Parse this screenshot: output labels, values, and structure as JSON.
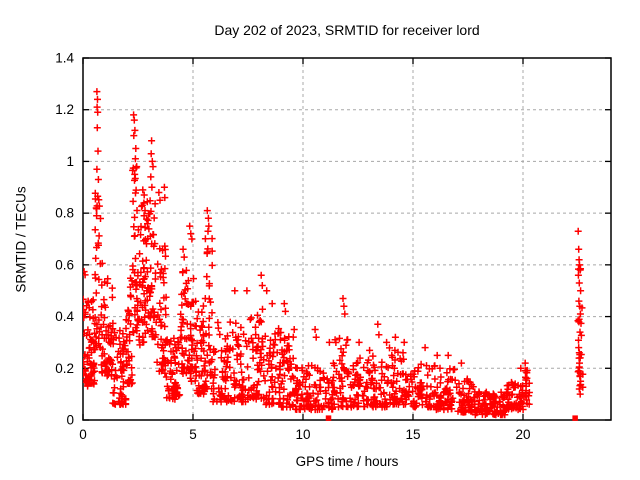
{
  "colors": {
    "marker": "#ff0000",
    "grid": "#a8a8a8",
    "frame": "#000000",
    "background": "#ffffff",
    "text": "#000000"
  },
  "chart_data": {
    "type": "scatter",
    "title": "Day 202 of 2023, SRMTID for receiver lord",
    "xlabel": "GPS time / hours",
    "ylabel": "SRMTID / TECUs",
    "xlim": [
      0,
      24
    ],
    "ylim": [
      0,
      1.4
    ],
    "xticks": [
      0,
      5,
      10,
      15,
      20
    ],
    "xtick_labels": [
      "0",
      "5",
      "10",
      "15",
      "20"
    ],
    "yticks": [
      0,
      0.2,
      0.4,
      0.6,
      0.8,
      1,
      1.2,
      1.4
    ],
    "ytick_labels": [
      "0",
      "0.2",
      "0.4",
      "0.6",
      "0.8",
      "1",
      "1.2",
      "1.4"
    ],
    "grid": true,
    "legend": "none",
    "marker": {
      "shape": "plus",
      "color": "#ff0000",
      "size": 7
    },
    "special_markers": {
      "shape": "filled-square",
      "color": "#ff0000",
      "points": [
        [
          11.16,
          0
        ],
        [
          22.37,
          0
        ]
      ]
    },
    "seed": 20230722,
    "scatter_envelope_bins": [
      [
        0.0,
        0.1,
        12,
        0.15,
        0.65,
        1.0
      ],
      [
        0.05,
        0.55,
        60,
        0.13,
        0.48,
        1.4
      ],
      [
        0.55,
        0.8,
        30,
        0.28,
        0.88,
        1.2
      ],
      [
        0.8,
        1.35,
        55,
        0.17,
        0.62,
        1.6
      ],
      [
        1.35,
        1.95,
        55,
        0.06,
        0.38,
        1.6
      ],
      [
        1.95,
        2.25,
        38,
        0.14,
        0.55,
        1.4
      ],
      [
        2.25,
        2.52,
        40,
        0.33,
        0.98,
        1.2
      ],
      [
        2.52,
        2.88,
        42,
        0.28,
        0.85,
        1.4
      ],
      [
        2.88,
        3.3,
        52,
        0.32,
        0.88,
        1.3
      ],
      [
        3.3,
        3.78,
        48,
        0.18,
        0.7,
        1.5
      ],
      [
        3.78,
        4.4,
        55,
        0.08,
        0.32,
        1.5
      ],
      [
        4.4,
        4.8,
        38,
        0.18,
        0.58,
        1.4
      ],
      [
        4.8,
        5.15,
        35,
        0.15,
        0.62,
        1.4
      ],
      [
        5.15,
        5.55,
        40,
        0.1,
        0.45,
        1.5
      ],
      [
        5.55,
        5.9,
        35,
        0.12,
        0.72,
        1.6
      ],
      [
        5.9,
        6.6,
        52,
        0.07,
        0.42,
        1.7
      ],
      [
        6.6,
        7.4,
        55,
        0.07,
        0.38,
        1.7
      ],
      [
        7.4,
        8.3,
        60,
        0.08,
        0.45,
        1.7
      ],
      [
        8.3,
        9.0,
        55,
        0.06,
        0.38,
        1.7
      ],
      [
        9.0,
        9.6,
        48,
        0.05,
        0.33,
        1.7
      ],
      [
        9.6,
        10.35,
        55,
        0.04,
        0.22,
        1.6
      ],
      [
        10.35,
        10.95,
        32,
        0.04,
        0.22,
        1.7
      ],
      [
        10.95,
        11.35,
        22,
        0.04,
        0.16,
        1.5
      ],
      [
        11.35,
        12.1,
        48,
        0.05,
        0.33,
        1.8
      ],
      [
        12.1,
        13.0,
        55,
        0.05,
        0.25,
        1.7
      ],
      [
        13.0,
        14.0,
        62,
        0.05,
        0.28,
        1.7
      ],
      [
        14.0,
        15.0,
        62,
        0.06,
        0.27,
        1.7
      ],
      [
        15.0,
        16.0,
        60,
        0.05,
        0.22,
        1.7
      ],
      [
        16.0,
        17.0,
        60,
        0.04,
        0.2,
        1.7
      ],
      [
        17.0,
        17.8,
        52,
        0.03,
        0.16,
        1.6
      ],
      [
        17.8,
        19.2,
        85,
        0.02,
        0.11,
        1.5
      ],
      [
        19.2,
        20.05,
        55,
        0.04,
        0.15,
        1.5
      ],
      [
        20.05,
        20.3,
        18,
        0.06,
        0.2,
        1.2
      ],
      [
        22.48,
        22.64,
        10,
        0.1,
        0.6,
        1.0
      ],
      [
        22.52,
        22.75,
        10,
        0.12,
        0.55,
        1.0
      ]
    ],
    "peak_points": [
      [
        0.63,
        1.27
      ],
      [
        0.66,
        1.24
      ],
      [
        0.64,
        1.21
      ],
      [
        0.67,
        1.19
      ],
      [
        0.65,
        1.13
      ],
      [
        0.68,
        1.04
      ],
      [
        0.63,
        0.97
      ],
      [
        0.7,
        0.93
      ],
      [
        0.6,
        0.82
      ],
      [
        0.62,
        0.79
      ],
      [
        2.3,
        1.18
      ],
      [
        2.33,
        1.16
      ],
      [
        2.36,
        1.12
      ],
      [
        2.31,
        1.1
      ],
      [
        2.4,
        1.05
      ],
      [
        2.38,
        1.01
      ],
      [
        2.44,
        0.98
      ],
      [
        2.35,
        0.95
      ],
      [
        2.72,
        0.89
      ],
      [
        2.78,
        0.87
      ],
      [
        2.7,
        0.83
      ],
      [
        2.82,
        0.81
      ],
      [
        3.12,
        1.08
      ],
      [
        3.1,
        1.03
      ],
      [
        3.15,
        1.0
      ],
      [
        3.18,
        0.98
      ],
      [
        3.08,
        0.94
      ],
      [
        3.13,
        0.9
      ],
      [
        3.45,
        0.88
      ],
      [
        3.5,
        0.85
      ],
      [
        3.7,
        0.9
      ],
      [
        3.72,
        0.86
      ],
      [
        4.55,
        0.66
      ],
      [
        4.6,
        0.63
      ],
      [
        4.85,
        0.75
      ],
      [
        4.9,
        0.72
      ],
      [
        4.95,
        0.7
      ],
      [
        5.65,
        0.81
      ],
      [
        5.7,
        0.78
      ],
      [
        5.72,
        0.75
      ],
      [
        5.68,
        0.73
      ],
      [
        6.9,
        0.5
      ],
      [
        7.45,
        0.5
      ],
      [
        8.1,
        0.56
      ],
      [
        8.15,
        0.52
      ],
      [
        8.35,
        0.5
      ],
      [
        8.6,
        0.45
      ],
      [
        9.15,
        0.45
      ],
      [
        9.2,
        0.42
      ],
      [
        9.6,
        0.35
      ],
      [
        10.55,
        0.35
      ],
      [
        10.6,
        0.32
      ],
      [
        11.2,
        0.3
      ],
      [
        11.82,
        0.47
      ],
      [
        11.86,
        0.44
      ],
      [
        11.9,
        0.41
      ],
      [
        12.55,
        0.3
      ],
      [
        13.4,
        0.37
      ],
      [
        13.45,
        0.33
      ],
      [
        13.8,
        0.3
      ],
      [
        14.2,
        0.32
      ],
      [
        14.6,
        0.3
      ],
      [
        15.55,
        0.28
      ],
      [
        16.1,
        0.25
      ],
      [
        16.6,
        0.25
      ],
      [
        17.2,
        0.22
      ],
      [
        19.9,
        0.2
      ],
      [
        20.1,
        0.22
      ],
      [
        20.15,
        0.19
      ],
      [
        22.51,
        0.73
      ],
      [
        22.53,
        0.66
      ],
      [
        22.55,
        0.62
      ],
      [
        22.57,
        0.6
      ],
      [
        22.6,
        0.58
      ],
      [
        22.52,
        0.56
      ],
      [
        22.56,
        0.53
      ],
      [
        22.62,
        0.5
      ],
      [
        22.54,
        0.46
      ],
      [
        22.58,
        0.44
      ],
      [
        22.61,
        0.41
      ],
      [
        22.55,
        0.39
      ],
      [
        22.59,
        0.34
      ],
      [
        22.53,
        0.28
      ],
      [
        22.56,
        0.26
      ],
      [
        22.6,
        0.24
      ],
      [
        22.57,
        0.22
      ],
      [
        22.54,
        0.19
      ],
      [
        22.58,
        0.17
      ],
      [
        22.62,
        0.15
      ],
      [
        22.56,
        0.12
      ],
      [
        22.6,
        0.1
      ]
    ]
  }
}
